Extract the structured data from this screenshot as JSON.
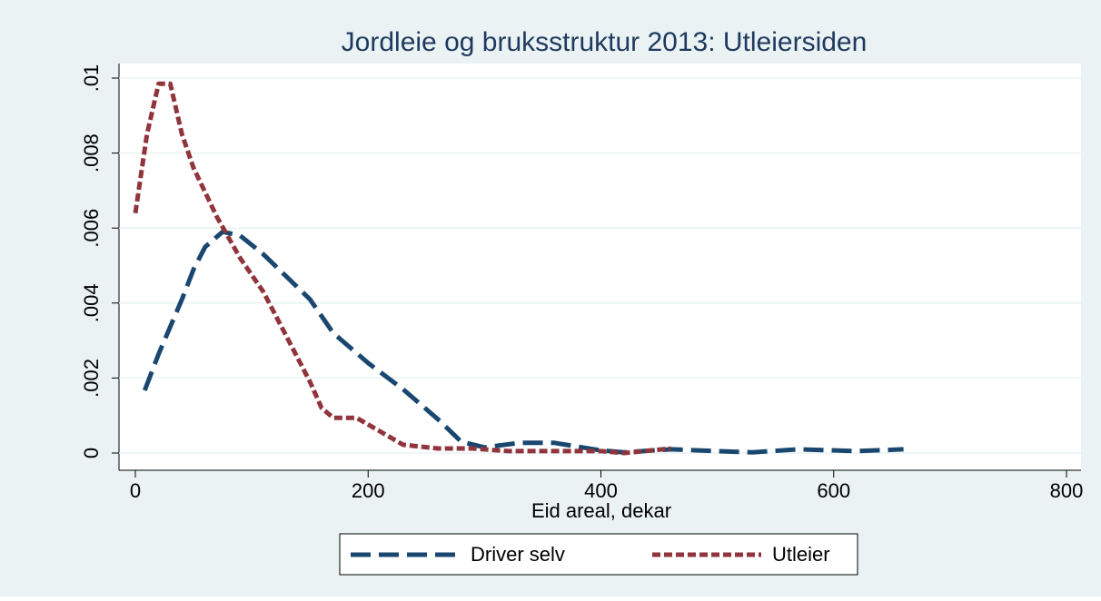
{
  "chart_data": {
    "type": "line",
    "title": "Jordleie og bruksstruktur 2013: Utleiersiden",
    "x_label": "Eid areal, dekar",
    "xlim": [
      0,
      800
    ],
    "xticks": [
      0,
      200,
      400,
      600,
      800
    ],
    "ylim": [
      0,
      0.01
    ],
    "yticks": [
      0,
      {
        "value": 0.002,
        "label": ".002"
      },
      {
        "value": 0.004,
        "label": ".004"
      },
      {
        "value": 0.006,
        "label": ".006"
      },
      {
        "value": 0.008,
        "label": ".008"
      },
      {
        "value": 0.01,
        "label": ".01"
      }
    ],
    "grid": true,
    "legend": "bottom",
    "series": [
      {
        "name": "Driver selv",
        "color": "#1a476f",
        "dash": "long",
        "x": [
          8,
          20,
          40,
          50,
          60,
          75,
          90,
          110,
          130,
          150,
          170,
          200,
          230,
          260,
          280,
          300,
          330,
          360,
          400,
          420,
          460,
          500,
          530,
          570,
          620,
          660
        ],
        "values": [
          0.00167,
          0.00264,
          0.0041,
          0.0049,
          0.0055,
          0.0059,
          0.0058,
          0.0053,
          0.0047,
          0.0041,
          0.0032,
          0.0024,
          0.0017,
          0.0009,
          0.0003,
          0.00015,
          0.00027,
          0.00027,
          7e-05,
          2e-05,
          0.0001,
          5e-05,
          2e-05,
          0.0001,
          5e-05,
          0.0001
        ]
      },
      {
        "name": "Utleier",
        "color": "#90353b",
        "dash": "short",
        "x": [
          0,
          10,
          20,
          30,
          40,
          50,
          70,
          90,
          110,
          130,
          150,
          160,
          170,
          190,
          210,
          230,
          260,
          290,
          320,
          360,
          400,
          420,
          460
        ],
        "values": [
          0.0064,
          0.0085,
          0.00985,
          0.00985,
          0.0085,
          0.0076,
          0.0063,
          0.0052,
          0.0043,
          0.0031,
          0.0019,
          0.0012,
          0.00094,
          0.00094,
          0.00058,
          0.00022,
          0.00012,
          0.00012,
          5e-05,
          5e-05,
          5e-05,
          0,
          0.00012
        ]
      }
    ]
  }
}
